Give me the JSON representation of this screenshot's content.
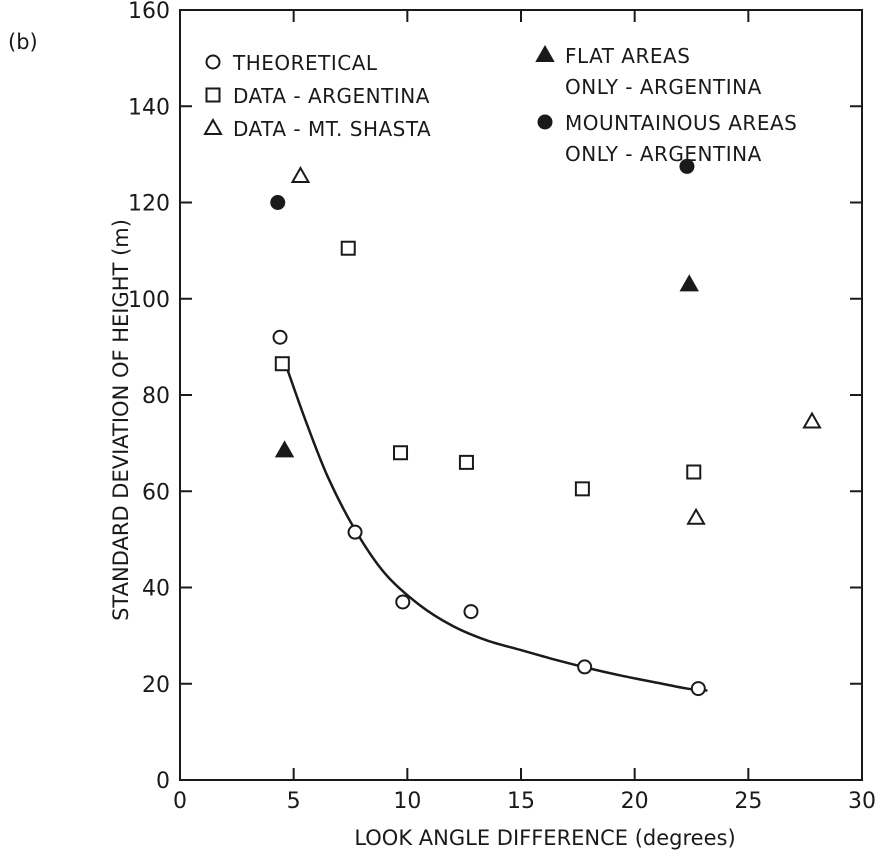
{
  "panel_label": "(b)",
  "chart_data": {
    "type": "scatter",
    "title": "",
    "xlabel": "LOOK ANGLE DIFFERENCE (degrees)",
    "ylabel": "STANDARD DEVIATION OF HEIGHT (m)",
    "xlim": [
      0,
      30
    ],
    "ylim": [
      0,
      160
    ],
    "x_ticks": [
      0,
      5,
      10,
      15,
      20,
      25,
      30
    ],
    "y_ticks": [
      0,
      20,
      40,
      60,
      80,
      100,
      120,
      140,
      160
    ],
    "grid": false,
    "legend_placement": "top",
    "series": [
      {
        "name": "THEORETICAL",
        "marker": "open-circle",
        "points": [
          [
            4.4,
            92
          ],
          [
            7.7,
            51.5
          ],
          [
            9.8,
            37
          ],
          [
            12.8,
            35
          ],
          [
            17.8,
            23.5
          ],
          [
            22.8,
            19
          ]
        ],
        "fit_curve": [
          [
            4.6,
            87
          ],
          [
            5.5,
            75
          ],
          [
            6.5,
            63
          ],
          [
            7.7,
            52
          ],
          [
            9,
            43
          ],
          [
            10.5,
            36.5
          ],
          [
            12,
            32
          ],
          [
            13.5,
            29
          ],
          [
            15,
            27
          ],
          [
            16.5,
            25
          ],
          [
            18,
            23.2
          ],
          [
            19.5,
            21.6
          ],
          [
            21,
            20.2
          ],
          [
            22.3,
            19
          ],
          [
            23.2,
            18.6
          ]
        ]
      },
      {
        "name": "DATA - ARGENTINA",
        "marker": "open-square",
        "points": [
          [
            4.5,
            86.5
          ],
          [
            7.4,
            110.5
          ],
          [
            9.7,
            68
          ],
          [
            12.6,
            66
          ],
          [
            17.7,
            60.5
          ],
          [
            22.6,
            64
          ]
        ]
      },
      {
        "name": "DATA - MT. SHASTA",
        "marker": "open-triangle",
        "points": [
          [
            5.3,
            125.5
          ],
          [
            22.7,
            54.5
          ],
          [
            27.8,
            74.5
          ]
        ]
      },
      {
        "name_lines": [
          "FLAT AREAS",
          "ONLY - ARGENTINA"
        ],
        "marker": "filled-triangle",
        "points": [
          [
            4.6,
            68.5
          ],
          [
            22.4,
            103
          ]
        ]
      },
      {
        "name_lines": [
          "MOUNTAINOUS AREAS",
          "ONLY - ARGENTINA"
        ],
        "marker": "filled-circle",
        "points": [
          [
            4.3,
            120
          ],
          [
            22.3,
            127.5
          ]
        ]
      }
    ]
  }
}
